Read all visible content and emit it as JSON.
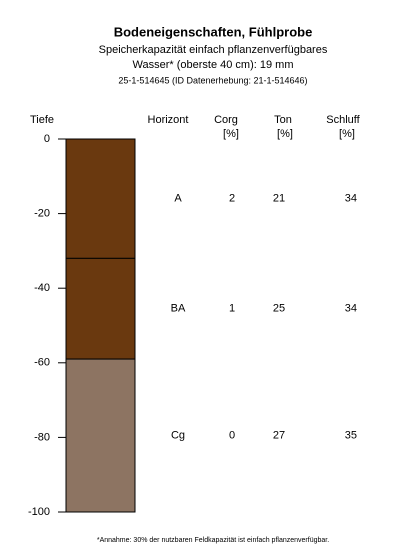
{
  "chart_data": {
    "type": "profile",
    "title": "Bodeneigenschaften, Fühlprobe",
    "subtitle": [
      "Speicherkapazität einfach pflanzenverfügbares",
      "Wasser* (oberste 40 cm): 19 mm",
      "25-1-514645 (ID Datenerhebung: 21-1-514646)"
    ],
    "y_label": "Tiefe",
    "ylim": [
      -100,
      0
    ],
    "yticks": [
      0,
      -20,
      -40,
      -60,
      -80,
      -100
    ],
    "columns": [
      {
        "name": "Horizont"
      },
      {
        "name": "Corg",
        "unit": "[%]"
      },
      {
        "name": "Ton",
        "unit": "[%]"
      },
      {
        "name": "Schluff",
        "unit": "[%]"
      }
    ],
    "horizons": [
      {
        "name": "A",
        "top": 0,
        "bottom": -32,
        "color": "#6a390f",
        "values": [
          2,
          21,
          34
        ]
      },
      {
        "name": "BA",
        "top": -32,
        "bottom": -59,
        "color": "#6a390f",
        "values": [
          1,
          25,
          34
        ]
      },
      {
        "name": "Cg",
        "top": -59,
        "bottom": -100,
        "color": "#8d7462",
        "values": [
          0,
          27,
          35
        ]
      }
    ],
    "footnote": "*Annahme: 30% der nutzbaren Feldkapazität ist einfach pflanzenverfügbar."
  }
}
